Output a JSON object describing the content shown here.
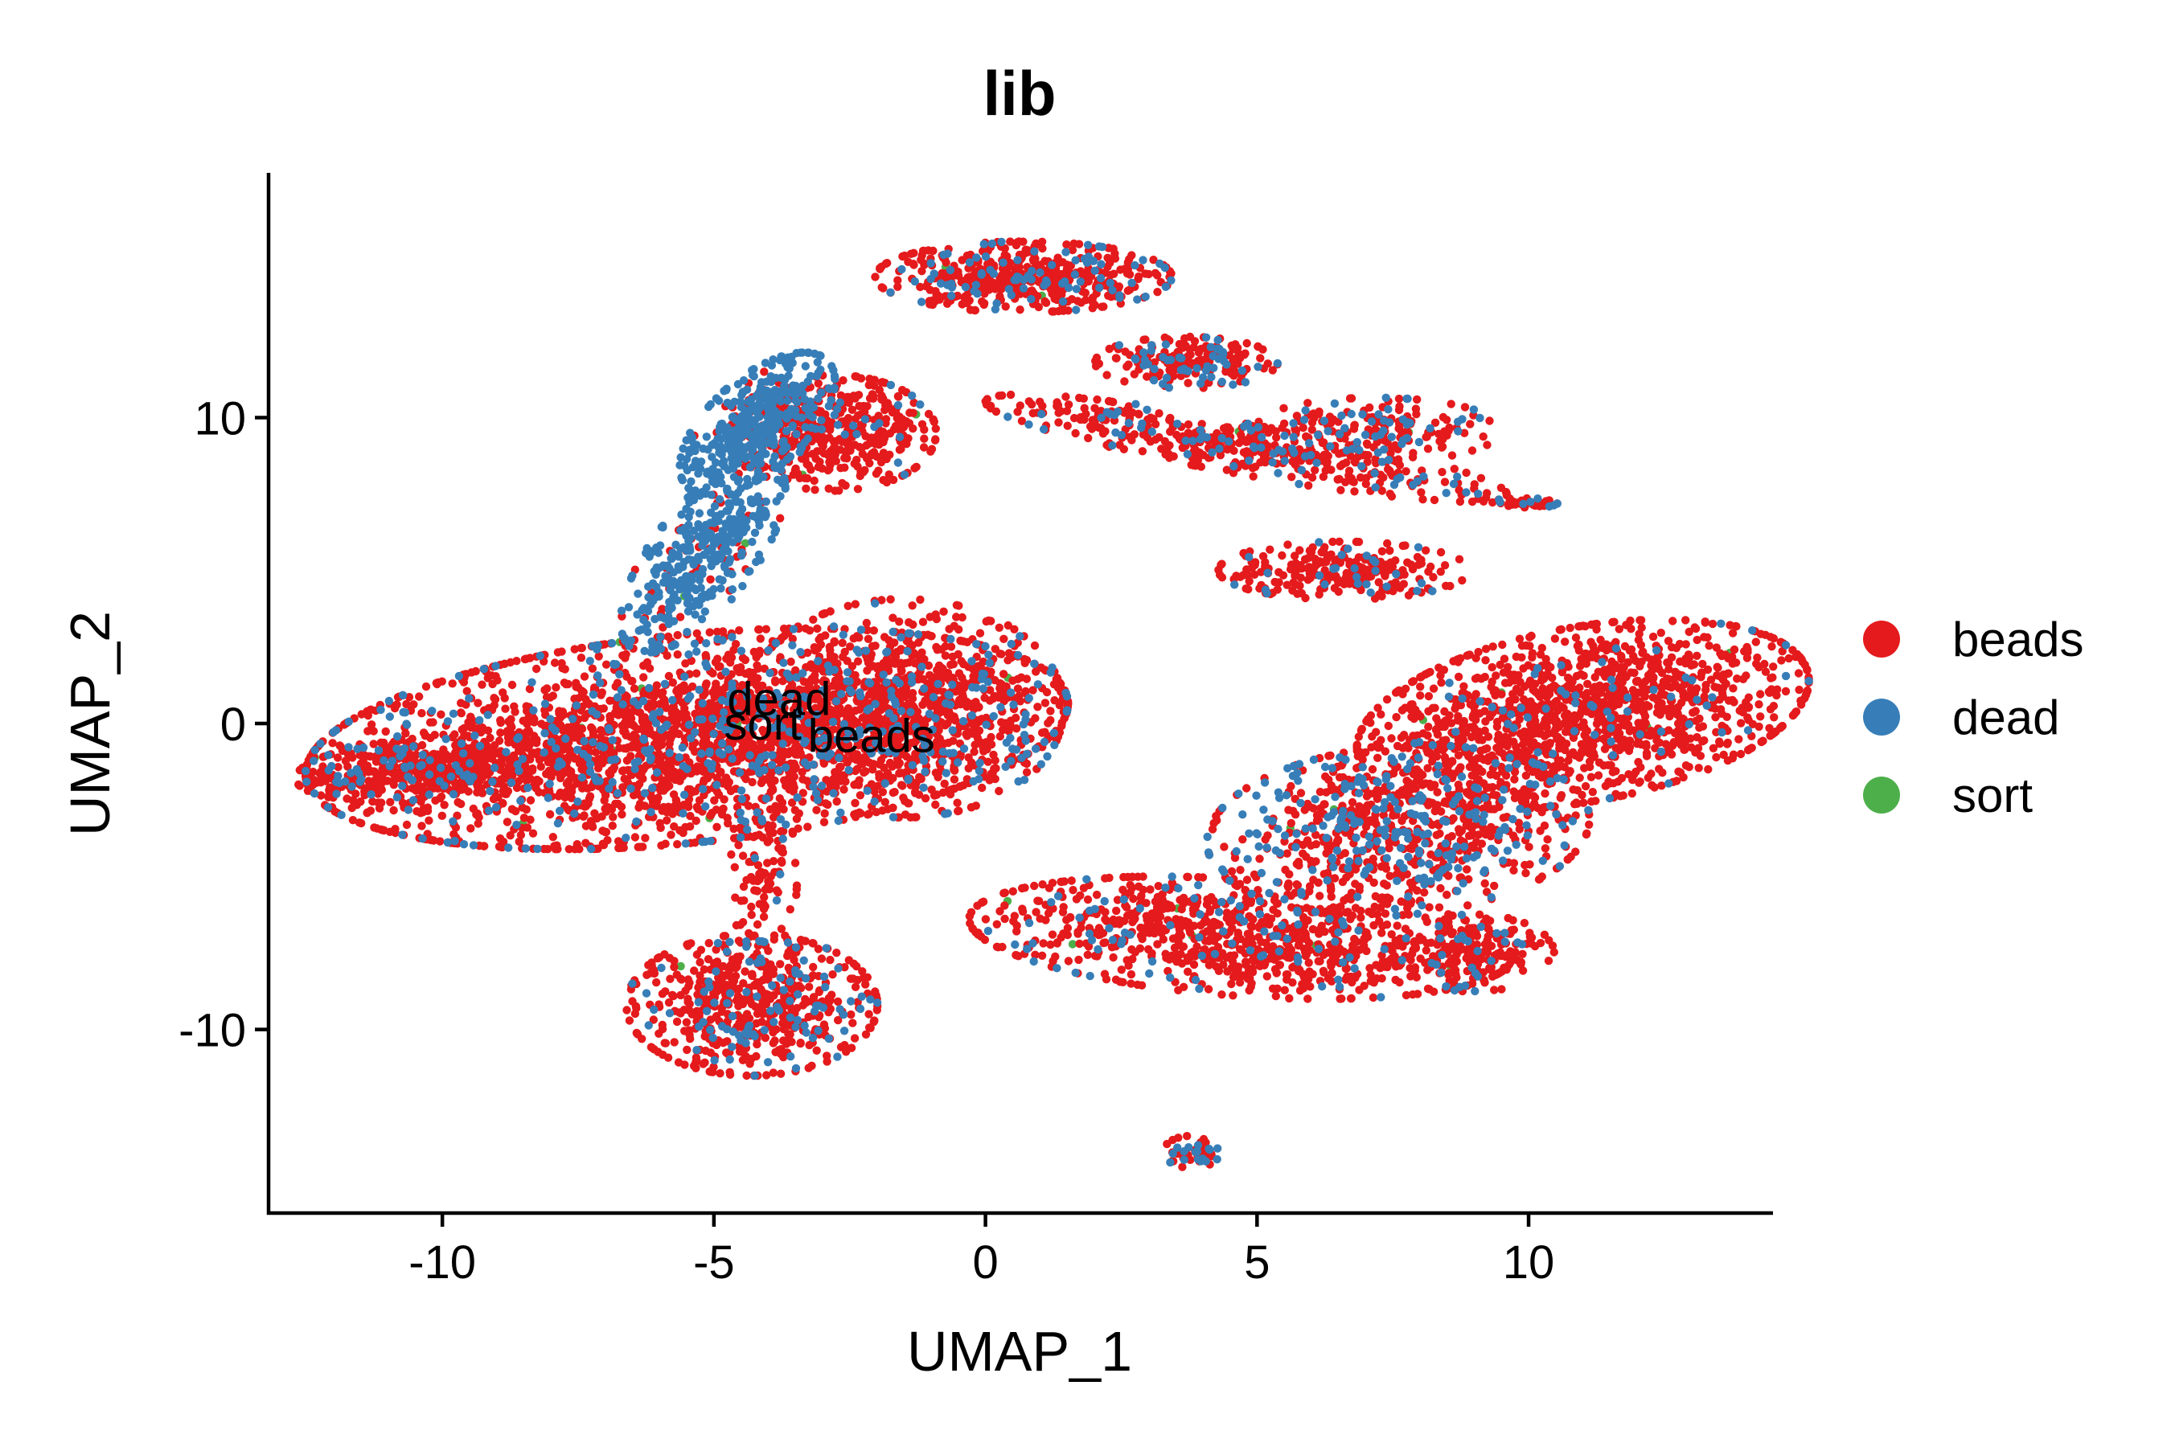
{
  "chart_data": {
    "type": "scatter",
    "title": "lib",
    "xlabel": "UMAP_1",
    "ylabel": "UMAP_2",
    "xlim": [
      -13.2,
      14.5
    ],
    "ylim": [
      -16.0,
      18.0
    ],
    "xticks": [
      -10,
      -5,
      0,
      5,
      10
    ],
    "yticks": [
      -10,
      0,
      10
    ],
    "xtick_labels": [
      "-10",
      "-5",
      "0",
      "5",
      "10"
    ],
    "ytick_labels": [
      "-10",
      "0",
      "10"
    ],
    "grid": false,
    "legend_position": "right",
    "series": [
      {
        "name": "beads",
        "color": "#E41A1C"
      },
      {
        "name": "dead",
        "color": "#377EB8"
      },
      {
        "name": "sort",
        "color": "#4DAF4A"
      }
    ],
    "point_labels": [
      {
        "text": "dead",
        "x": -3.8,
        "y": 0.8
      },
      {
        "text": "sort",
        "x": -4.1,
        "y": 0.0
      },
      {
        "text": "beads",
        "x": -2.1,
        "y": -0.4
      }
    ],
    "clusters": [
      {
        "name": "main-left",
        "x": -5.5,
        "y": -0.5,
        "sx": 3.4,
        "sy": 1.6,
        "rot": 12,
        "n": 2600,
        "dead": 0.14
      },
      {
        "name": "left-tail",
        "x": -10.2,
        "y": -1.5,
        "sx": 1.2,
        "sy": 0.5,
        "rot": 8,
        "n": 420,
        "dead": 0.12
      },
      {
        "name": "main-right",
        "x": -1.5,
        "y": 0.5,
        "sx": 1.4,
        "sy": 1.7,
        "rot": 0,
        "n": 700,
        "dead": 0.14
      },
      {
        "name": "neck-upper",
        "x": -4.2,
        "y": 9.8,
        "sx": 0.5,
        "sy": 1.2,
        "rot": -25,
        "n": 380,
        "dead": 0.9
      },
      {
        "name": "neck-lower",
        "x": -5.2,
        "y": 5.5,
        "sx": 0.5,
        "sy": 1.6,
        "rot": -20,
        "n": 380,
        "dead": 0.85
      },
      {
        "name": "upper-arm",
        "x": -2.8,
        "y": 9.5,
        "sx": 0.9,
        "sy": 0.9,
        "rot": 20,
        "n": 420,
        "dead": 0.08
      },
      {
        "name": "lower-left-blob",
        "x": -4.3,
        "y": -9.2,
        "sx": 1.1,
        "sy": 1.1,
        "rot": 0,
        "n": 620,
        "dead": 0.15
      },
      {
        "name": "lower-stem",
        "x": -4.1,
        "y": -5.0,
        "sx": 0.3,
        "sy": 1.4,
        "rot": 0,
        "n": 110,
        "dead": 0.12
      },
      {
        "name": "top-center",
        "x": 0.7,
        "y": 14.6,
        "sx": 1.3,
        "sy": 0.55,
        "rot": 0,
        "n": 520,
        "dead": 0.15
      },
      {
        "name": "top-right-a",
        "x": 3.7,
        "y": 11.8,
        "sx": 0.8,
        "sy": 0.4,
        "rot": 0,
        "n": 200,
        "dead": 0.2
      },
      {
        "name": "mid-diagonal",
        "x": 4.8,
        "y": 9.0,
        "sx": 2.4,
        "sy": 0.4,
        "rot": -18,
        "n": 420,
        "dead": 0.15
      },
      {
        "name": "mid-right",
        "x": 7.2,
        "y": 9.6,
        "sx": 1.1,
        "sy": 0.5,
        "rot": 0,
        "n": 200,
        "dead": 0.18
      },
      {
        "name": "small-tail",
        "x": 9.9,
        "y": 7.2,
        "sx": 0.3,
        "sy": 0.08,
        "rot": 0,
        "n": 40,
        "dead": 0.3
      },
      {
        "name": "mid-oval",
        "x": 6.6,
        "y": 5.0,
        "sx": 1.1,
        "sy": 0.45,
        "rot": 0,
        "n": 260,
        "dead": 0.12
      },
      {
        "name": "right-upper",
        "x": 11.0,
        "y": 0.3,
        "sx": 2.1,
        "sy": 1.3,
        "rot": 25,
        "n": 1400,
        "dead": 0.04
      },
      {
        "name": "right-mid",
        "x": 7.6,
        "y": -3.5,
        "sx": 1.7,
        "sy": 1.3,
        "rot": 15,
        "n": 800,
        "dead": 0.3
      },
      {
        "name": "right-lower",
        "x": 4.7,
        "y": -7.0,
        "sx": 2.4,
        "sy": 0.9,
        "rot": -8,
        "n": 900,
        "dead": 0.1
      },
      {
        "name": "right-bottom-arm",
        "x": 9.0,
        "y": -7.5,
        "sx": 0.7,
        "sy": 0.6,
        "rot": 0,
        "n": 180,
        "dead": 0.12
      },
      {
        "name": "bottom-small",
        "x": 3.8,
        "y": -14.0,
        "sx": 0.25,
        "sy": 0.25,
        "rot": 0,
        "n": 45,
        "dead": 0.35
      }
    ]
  }
}
